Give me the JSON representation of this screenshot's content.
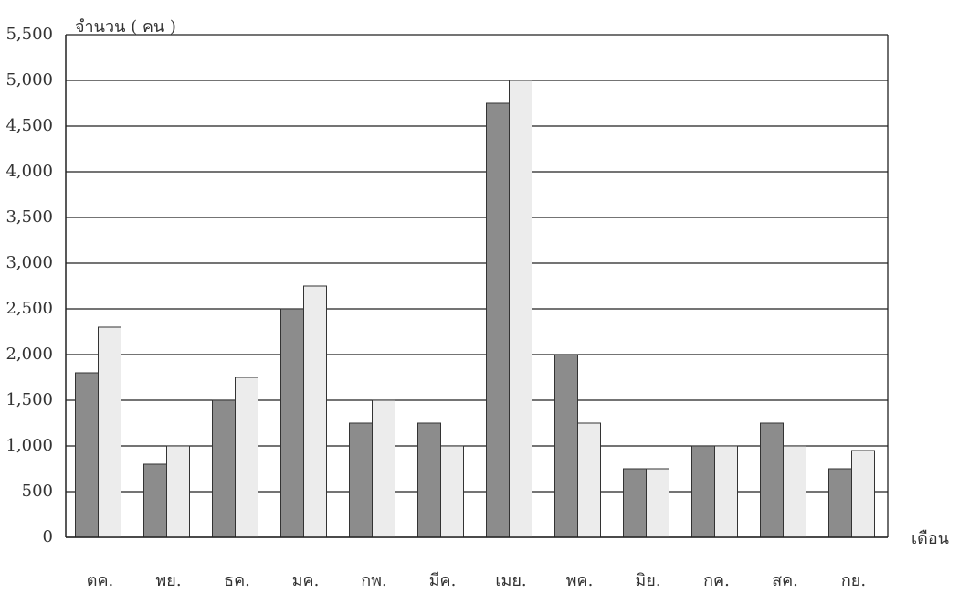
{
  "chart_data": {
    "type": "bar",
    "y_label": "จำนวน ( คน )",
    "x_label": "เดือน",
    "categories": [
      "ตค.",
      "พย.",
      "ธค.",
      "มค.",
      "กพ.",
      "มีค.",
      "เมย.",
      "พค.",
      "มิย.",
      "กค.",
      "สค.",
      "กย."
    ],
    "series": [
      {
        "color": "#8c8c8c",
        "values": [
          1800,
          800,
          1500,
          2500,
          1250,
          1250,
          4750,
          2000,
          750,
          1000,
          1250,
          750
        ]
      },
      {
        "color": "#ececec",
        "values": [
          2300,
          1000,
          1750,
          2750,
          1500,
          1000,
          5000,
          1250,
          750,
          1000,
          1000,
          950
        ]
      }
    ],
    "ylim": [
      0,
      5500
    ],
    "yticks": [
      0,
      500,
      {
        "value": 1000,
        "label": "1,000"
      },
      {
        "value": 1500,
        "label": "1,500"
      },
      {
        "value": 2000,
        "label": "2,000"
      },
      {
        "value": 2500,
        "label": "2,500"
      },
      {
        "value": 3000,
        "label": "3,000"
      },
      {
        "value": 3500,
        "label": "3,500"
      },
      {
        "value": 4000,
        "label": "4,000"
      },
      {
        "value": 4500,
        "label": "4,500"
      },
      {
        "value": 5000,
        "label": "5,000"
      },
      {
        "value": 5500,
        "label": "5,500"
      }
    ],
    "grid": true
  }
}
